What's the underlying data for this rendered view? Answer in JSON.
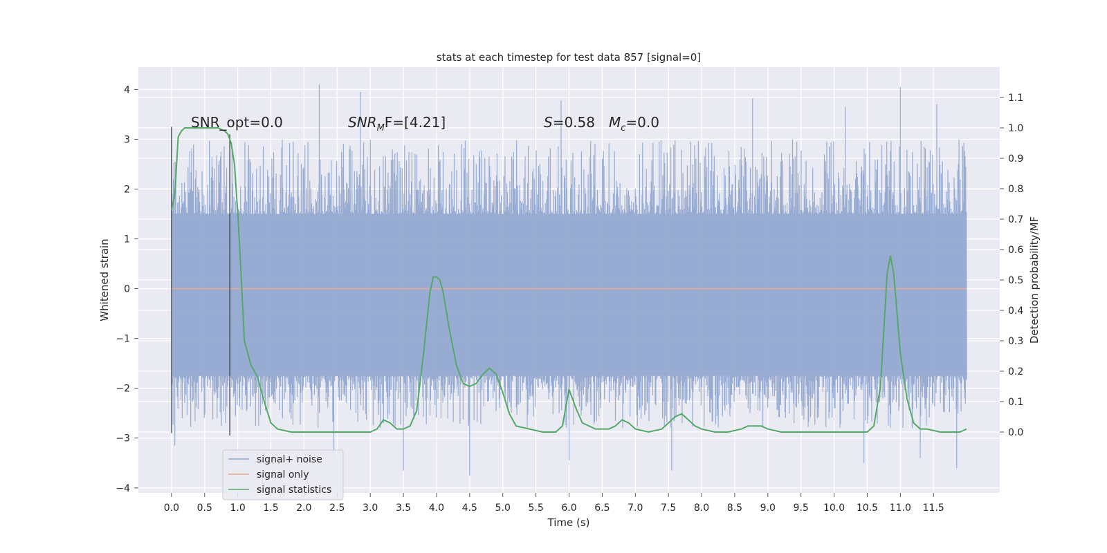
{
  "chart_data": {
    "type": "line",
    "title": "stats at each timestep for test data 857 [signal=0]",
    "xlabel": "Time (s)",
    "ylabel_left": "Whitened strain",
    "ylabel_right": "Detection probability/MF",
    "xlim": [
      -0.5,
      12.5
    ],
    "ylim_left": [
      -4.1,
      4.45
    ],
    "ylim_right": [
      -0.2,
      1.2
    ],
    "x_ticks": [
      0.0,
      0.5,
      1.0,
      1.5,
      2.0,
      2.5,
      3.0,
      3.5,
      4.0,
      4.5,
      5.0,
      5.5,
      6.0,
      6.5,
      7.0,
      7.5,
      8.0,
      8.5,
      9.0,
      9.5,
      10.0,
      10.5,
      11.0,
      11.5
    ],
    "x_tick_labels": [
      "0.0",
      "0.5",
      "1.0",
      "1.5",
      "2.0",
      "2.5",
      "3.0",
      "3.5",
      "4.0",
      "4.5",
      "5.0",
      "5.5",
      "6.0",
      "6.5",
      "7.0",
      "7.5",
      "8.0",
      "8.5",
      "9.0",
      "9.5",
      "10.0",
      "10.5",
      "11.0",
      "11.5"
    ],
    "y_left_ticks": [
      4,
      3,
      2,
      1,
      0,
      -1,
      -2,
      -3,
      -4
    ],
    "y_left_tick_labels": [
      "4",
      "3",
      "2",
      "1",
      "0",
      "−1",
      "−2",
      "−3",
      "−4"
    ],
    "y_right_ticks": [
      1.1,
      1.0,
      0.9,
      0.8,
      0.7,
      0.6,
      0.5,
      0.4,
      0.3,
      0.2,
      0.1,
      0.0
    ],
    "y_right_tick_labels": [
      "1.1",
      "1.0",
      "0.9",
      "0.8",
      "0.7",
      "0.6",
      "0.5",
      "0.4",
      "0.3",
      "0.2",
      "0.1",
      "0.0"
    ],
    "grid": true,
    "legend_placement": "lower-left",
    "annotations": {
      "snr_opt": "SNR_opt=0.0",
      "snr_mf_base": "SNR",
      "snr_mf_sub": "M",
      "snr_mf_rest": "F=[4.21]",
      "s_base": "S",
      "s_rest": "=0.58",
      "mc_base": "M",
      "mc_sub": "c",
      "mc_rest": "=0.0"
    },
    "markers_vertical_x": [
      0.0,
      0.88
    ],
    "series": [
      {
        "name": "signal+ noise",
        "color": "#8fa5cf",
        "axis": "left",
        "t_range": [
          0.0,
          12.0
        ],
        "typical_envelope": [
          -1.7,
          1.4
        ],
        "peaks_up": [
          [
            0.0,
            3.25
          ],
          [
            2.23,
            4.1
          ],
          [
            2.85,
            3.95
          ],
          [
            5.88,
            3.78
          ],
          [
            8.77,
            3.82
          ],
          [
            10.17,
            3.65
          ],
          [
            11.0,
            4.05
          ],
          [
            11.55,
            3.7
          ]
        ],
        "peaks_down": [
          [
            0.05,
            -3.15
          ],
          [
            2.45,
            -3.35
          ],
          [
            3.5,
            -3.65
          ],
          [
            4.5,
            -3.75
          ],
          [
            6.0,
            -3.45
          ],
          [
            7.55,
            -3.65
          ],
          [
            10.45,
            -3.5
          ],
          [
            11.3,
            -3.4
          ],
          [
            11.85,
            -3.6
          ]
        ]
      },
      {
        "name": "signal only",
        "color": "#e8a68e",
        "axis": "left",
        "x": [
          0.0,
          12.0
        ],
        "y": [
          0.0,
          0.0
        ]
      },
      {
        "name": "signal statistics",
        "color": "#55a868",
        "axis": "right",
        "x": [
          0.0,
          0.05,
          0.1,
          0.15,
          0.2,
          0.3,
          0.5,
          0.7,
          0.8,
          0.85,
          0.9,
          0.95,
          1.0,
          1.05,
          1.1,
          1.2,
          1.3,
          1.4,
          1.5,
          1.6,
          1.8,
          2.0,
          2.5,
          3.0,
          3.1,
          3.2,
          3.3,
          3.4,
          3.5,
          3.6,
          3.7,
          3.8,
          3.9,
          3.95,
          4.0,
          4.05,
          4.1,
          4.2,
          4.3,
          4.4,
          4.5,
          4.6,
          4.7,
          4.8,
          4.9,
          5.0,
          5.1,
          5.2,
          5.4,
          5.6,
          5.8,
          5.9,
          6.0,
          6.1,
          6.2,
          6.4,
          6.6,
          6.7,
          6.8,
          6.9,
          7.0,
          7.2,
          7.4,
          7.5,
          7.6,
          7.7,
          7.8,
          7.9,
          8.0,
          8.2,
          8.4,
          8.6,
          8.7,
          8.8,
          8.9,
          9.0,
          9.2,
          9.5,
          10.0,
          10.5,
          10.6,
          10.7,
          10.8,
          10.85,
          10.9,
          11.0,
          11.1,
          11.2,
          11.3,
          11.4,
          11.6,
          11.8,
          11.9,
          12.0
        ],
        "y": [
          0.73,
          0.78,
          0.97,
          0.99,
          1.0,
          1.0,
          1.0,
          1.0,
          0.99,
          0.98,
          0.95,
          0.88,
          0.72,
          0.52,
          0.3,
          0.22,
          0.18,
          0.1,
          0.03,
          0.01,
          0.0,
          0.0,
          0.0,
          0.0,
          0.01,
          0.04,
          0.03,
          0.01,
          0.01,
          0.02,
          0.07,
          0.25,
          0.46,
          0.51,
          0.51,
          0.5,
          0.46,
          0.33,
          0.22,
          0.16,
          0.15,
          0.16,
          0.19,
          0.21,
          0.19,
          0.13,
          0.06,
          0.02,
          0.01,
          0.0,
          0.0,
          0.02,
          0.14,
          0.08,
          0.03,
          0.01,
          0.01,
          0.02,
          0.04,
          0.03,
          0.01,
          0.0,
          0.01,
          0.03,
          0.05,
          0.06,
          0.04,
          0.02,
          0.01,
          0.0,
          0.0,
          0.01,
          0.02,
          0.02,
          0.02,
          0.01,
          0.0,
          0.0,
          0.0,
          0.0,
          0.02,
          0.15,
          0.52,
          0.58,
          0.52,
          0.26,
          0.11,
          0.03,
          0.01,
          0.01,
          0.0,
          0.0,
          0.0,
          0.01
        ]
      }
    ]
  }
}
